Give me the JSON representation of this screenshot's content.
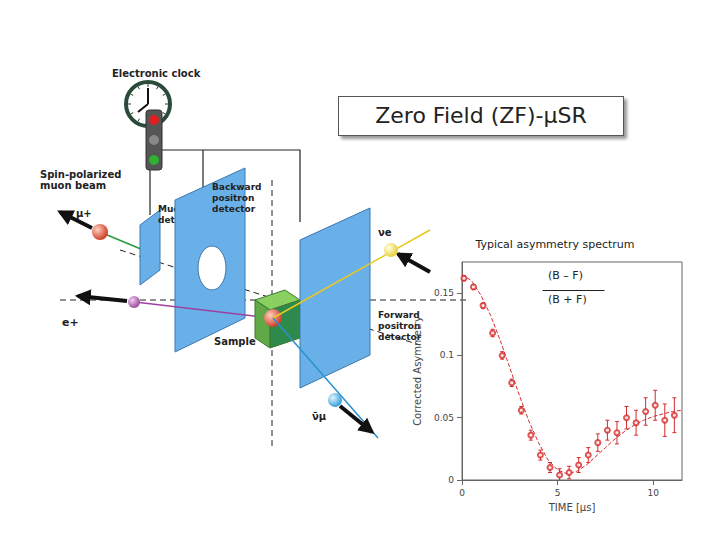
{
  "slide_title": "Zero Field (ZF)-μSR",
  "diagram": {
    "clock_label": "Electronic clock",
    "beam_label": [
      "Spin-polarized",
      "muon beam"
    ],
    "muon_symbol": "μ+",
    "muon_detector_label": [
      "Muon",
      "detector"
    ],
    "backward_detector_label": [
      "Backward",
      "positron",
      "detector"
    ],
    "positron_symbol": "e+",
    "sample_label": "Sample",
    "forward_detector_label": [
      "Forward",
      "positron",
      "detector"
    ],
    "electron_neutrino_symbol": "νe",
    "muon_antineutrino_symbol": "ν̄μ"
  },
  "chart_data": {
    "type": "scatter",
    "title": "Typical asymmetry spectrum",
    "formula": {
      "numerator": "(B – F)",
      "denominator": "(B + F)"
    },
    "x_label": "TIME [μs]",
    "y_label": "Corrected Asymmetry",
    "xlim": [
      0,
      11.5
    ],
    "xticks": [
      0,
      5,
      10
    ],
    "ylim": [
      0,
      0.175
    ],
    "yticks": [
      0,
      0.05,
      0.1,
      0.15
    ],
    "grid": false,
    "series": [
      {
        "type": "scatter",
        "color": "#d42a2a",
        "marker": "open_circle",
        "x": [
          0.1,
          0.6,
          1.1,
          1.6,
          2.1,
          2.6,
          3.1,
          3.6,
          4.1,
          4.6,
          5.1,
          5.6,
          6.1,
          6.6,
          7.1,
          7.6,
          8.1,
          8.6,
          9.1,
          9.6,
          10.1,
          10.6,
          11.1
        ],
        "values": [
          0.162,
          0.155,
          0.14,
          0.118,
          0.1,
          0.078,
          0.056,
          0.036,
          0.02,
          0.01,
          0.004,
          0.006,
          0.012,
          0.02,
          0.03,
          0.04,
          0.038,
          0.05,
          0.046,
          0.055,
          0.06,
          0.048,
          0.052
        ],
        "errors": [
          0.002,
          0.002,
          0.002,
          0.003,
          0.003,
          0.003,
          0.003,
          0.004,
          0.004,
          0.004,
          0.005,
          0.005,
          0.006,
          0.006,
          0.007,
          0.008,
          0.009,
          0.009,
          0.01,
          0.011,
          0.012,
          0.013,
          0.014
        ]
      },
      {
        "type": "line",
        "color": "#d42a2a",
        "line_style": "dashed",
        "x": [
          0,
          0.5,
          1,
          1.5,
          2,
          2.5,
          3,
          3.5,
          4,
          4.5,
          5,
          5.5,
          6,
          6.5,
          7,
          7.5,
          8,
          8.5,
          9,
          9.5,
          10,
          10.5,
          11,
          11.5
        ],
        "values": [
          0.165,
          0.16,
          0.148,
          0.132,
          0.112,
          0.09,
          0.068,
          0.047,
          0.03,
          0.016,
          0.008,
          0.005,
          0.007,
          0.012,
          0.019,
          0.026,
          0.033,
          0.039,
          0.044,
          0.048,
          0.051,
          0.053,
          0.055,
          0.056
        ]
      }
    ]
  }
}
